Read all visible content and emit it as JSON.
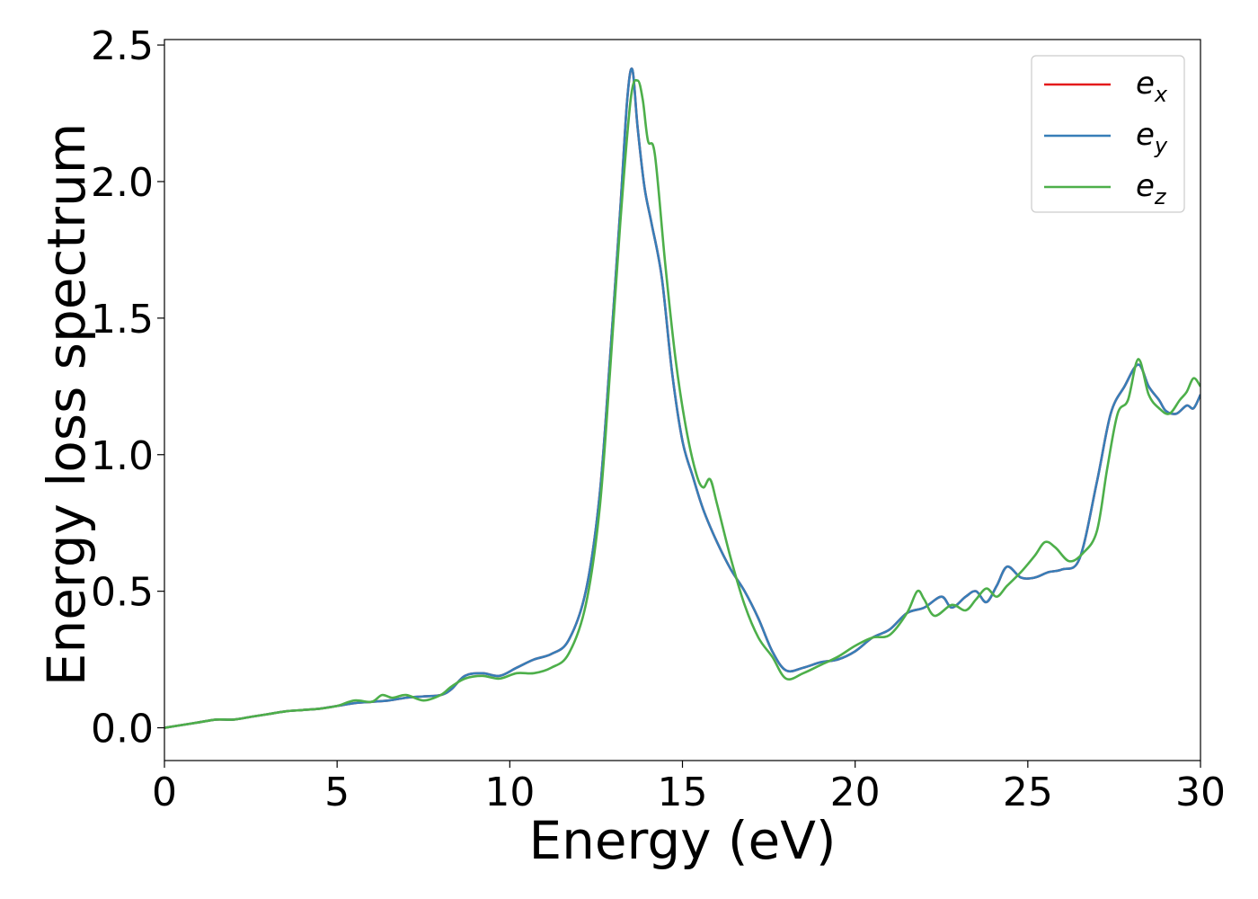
{
  "chart_data": {
    "type": "line",
    "xlabel": "Energy (eV)",
    "ylabel": "Energy loss spectrum",
    "xlim": [
      0,
      30
    ],
    "ylim": [
      -0.12,
      2.52
    ],
    "xticks": [
      0,
      5,
      10,
      15,
      20,
      25,
      30
    ],
    "xtick_labels": [
      "0",
      "5",
      "10",
      "15",
      "20",
      "25",
      "30"
    ],
    "yticks": [
      0.0,
      0.5,
      1.0,
      1.5,
      2.0,
      2.5
    ],
    "ytick_labels": [
      "0.0",
      "0.5",
      "1.0",
      "1.5",
      "2.0",
      "2.5"
    ],
    "grid": false,
    "legend_position": "top-right",
    "series": [
      {
        "name": "e_x",
        "legend_base": "e",
        "legend_sub": "x",
        "color": "#e41a1c",
        "x": [
          0,
          0.5,
          1,
          1.5,
          2,
          2.5,
          3,
          3.5,
          4,
          4.5,
          5,
          5.5,
          6,
          6.5,
          7,
          7.5,
          8,
          8.3,
          8.7,
          9.2,
          9.7,
          10.2,
          10.7,
          11.2,
          11.7,
          12.2,
          12.6,
          12.9,
          13.2,
          13.4,
          13.55,
          13.7,
          13.9,
          14.1,
          14.4,
          14.7,
          15,
          15.3,
          15.6,
          16,
          16.4,
          16.8,
          17.2,
          17.6,
          18,
          18.5,
          19,
          19.5,
          20,
          20.5,
          21,
          21.5,
          22,
          22.5,
          22.8,
          23.2,
          23.5,
          23.8,
          24.1,
          24.4,
          24.8,
          25.2,
          25.6,
          26,
          26.5,
          27,
          27.4,
          27.8,
          28.2,
          28.5,
          28.8,
          29,
          29.3,
          29.6,
          29.8,
          30
        ],
        "y": [
          0,
          0.01,
          0.02,
          0.03,
          0.03,
          0.04,
          0.05,
          0.06,
          0.065,
          0.07,
          0.08,
          0.09,
          0.095,
          0.1,
          0.11,
          0.115,
          0.12,
          0.14,
          0.19,
          0.2,
          0.19,
          0.22,
          0.25,
          0.27,
          0.32,
          0.5,
          0.85,
          1.35,
          1.9,
          2.3,
          2.41,
          2.2,
          1.98,
          1.85,
          1.65,
          1.3,
          1.05,
          0.92,
          0.8,
          0.68,
          0.58,
          0.5,
          0.4,
          0.28,
          0.21,
          0.22,
          0.24,
          0.25,
          0.28,
          0.33,
          0.36,
          0.42,
          0.44,
          0.48,
          0.44,
          0.48,
          0.5,
          0.46,
          0.52,
          0.59,
          0.55,
          0.55,
          0.57,
          0.58,
          0.62,
          0.9,
          1.15,
          1.25,
          1.33,
          1.25,
          1.2,
          1.16,
          1.15,
          1.18,
          1.17,
          1.22
        ]
      },
      {
        "name": "e_y",
        "legend_base": "e",
        "legend_sub": "y",
        "color": "#377eb8",
        "x": [
          0,
          0.5,
          1,
          1.5,
          2,
          2.5,
          3,
          3.5,
          4,
          4.5,
          5,
          5.5,
          6,
          6.5,
          7,
          7.5,
          8,
          8.3,
          8.7,
          9.2,
          9.7,
          10.2,
          10.7,
          11.2,
          11.7,
          12.2,
          12.6,
          12.9,
          13.2,
          13.4,
          13.55,
          13.7,
          13.9,
          14.1,
          14.4,
          14.7,
          15,
          15.3,
          15.6,
          16,
          16.4,
          16.8,
          17.2,
          17.6,
          18,
          18.5,
          19,
          19.5,
          20,
          20.5,
          21,
          21.5,
          22,
          22.5,
          22.8,
          23.2,
          23.5,
          23.8,
          24.1,
          24.4,
          24.8,
          25.2,
          25.6,
          26,
          26.5,
          27,
          27.4,
          27.8,
          28.2,
          28.5,
          28.8,
          29,
          29.3,
          29.6,
          29.8,
          30
        ],
        "y": [
          0,
          0.01,
          0.02,
          0.03,
          0.03,
          0.04,
          0.05,
          0.06,
          0.065,
          0.07,
          0.08,
          0.09,
          0.095,
          0.1,
          0.11,
          0.115,
          0.12,
          0.14,
          0.19,
          0.2,
          0.19,
          0.22,
          0.25,
          0.27,
          0.32,
          0.5,
          0.85,
          1.35,
          1.9,
          2.3,
          2.41,
          2.2,
          1.98,
          1.85,
          1.65,
          1.3,
          1.05,
          0.92,
          0.8,
          0.68,
          0.58,
          0.5,
          0.4,
          0.28,
          0.21,
          0.22,
          0.24,
          0.25,
          0.28,
          0.33,
          0.36,
          0.42,
          0.44,
          0.48,
          0.44,
          0.48,
          0.5,
          0.46,
          0.52,
          0.59,
          0.55,
          0.55,
          0.57,
          0.58,
          0.62,
          0.9,
          1.15,
          1.25,
          1.33,
          1.25,
          1.2,
          1.16,
          1.15,
          1.18,
          1.17,
          1.22
        ]
      },
      {
        "name": "e_z",
        "legend_base": "e",
        "legend_sub": "z",
        "color": "#4daf4a",
        "x": [
          0,
          0.5,
          1,
          1.5,
          2,
          2.5,
          3,
          3.5,
          4,
          4.5,
          5,
          5.5,
          6,
          6.3,
          6.6,
          7,
          7.5,
          8,
          8.3,
          8.7,
          9.2,
          9.7,
          10.2,
          10.7,
          11.2,
          11.7,
          12.2,
          12.6,
          12.9,
          13.2,
          13.5,
          13.7,
          13.85,
          14,
          14.2,
          14.5,
          14.8,
          15.1,
          15.4,
          15.6,
          15.8,
          16,
          16.4,
          16.8,
          17.2,
          17.6,
          18,
          18.5,
          19,
          19.5,
          20,
          20.5,
          21,
          21.5,
          21.8,
          22,
          22.3,
          22.8,
          23.2,
          23.5,
          23.8,
          24.1,
          24.4,
          24.8,
          25.2,
          25.5,
          25.8,
          26.2,
          26.6,
          27,
          27.3,
          27.6,
          27.9,
          28.2,
          28.5,
          28.8,
          29.1,
          29.4,
          29.6,
          29.8,
          30
        ],
        "y": [
          0,
          0.01,
          0.02,
          0.03,
          0.03,
          0.04,
          0.05,
          0.06,
          0.065,
          0.07,
          0.08,
          0.1,
          0.095,
          0.12,
          0.11,
          0.12,
          0.1,
          0.12,
          0.15,
          0.18,
          0.19,
          0.18,
          0.2,
          0.2,
          0.22,
          0.27,
          0.45,
          0.8,
          1.3,
          1.85,
          2.3,
          2.37,
          2.3,
          2.15,
          2.1,
          1.7,
          1.35,
          1.1,
          0.93,
          0.88,
          0.91,
          0.82,
          0.62,
          0.45,
          0.33,
          0.26,
          0.18,
          0.2,
          0.23,
          0.26,
          0.3,
          0.33,
          0.34,
          0.42,
          0.5,
          0.47,
          0.41,
          0.45,
          0.43,
          0.47,
          0.51,
          0.48,
          0.52,
          0.57,
          0.63,
          0.68,
          0.66,
          0.61,
          0.64,
          0.72,
          0.95,
          1.15,
          1.2,
          1.35,
          1.22,
          1.17,
          1.15,
          1.2,
          1.23,
          1.28,
          1.25
        ]
      }
    ]
  }
}
